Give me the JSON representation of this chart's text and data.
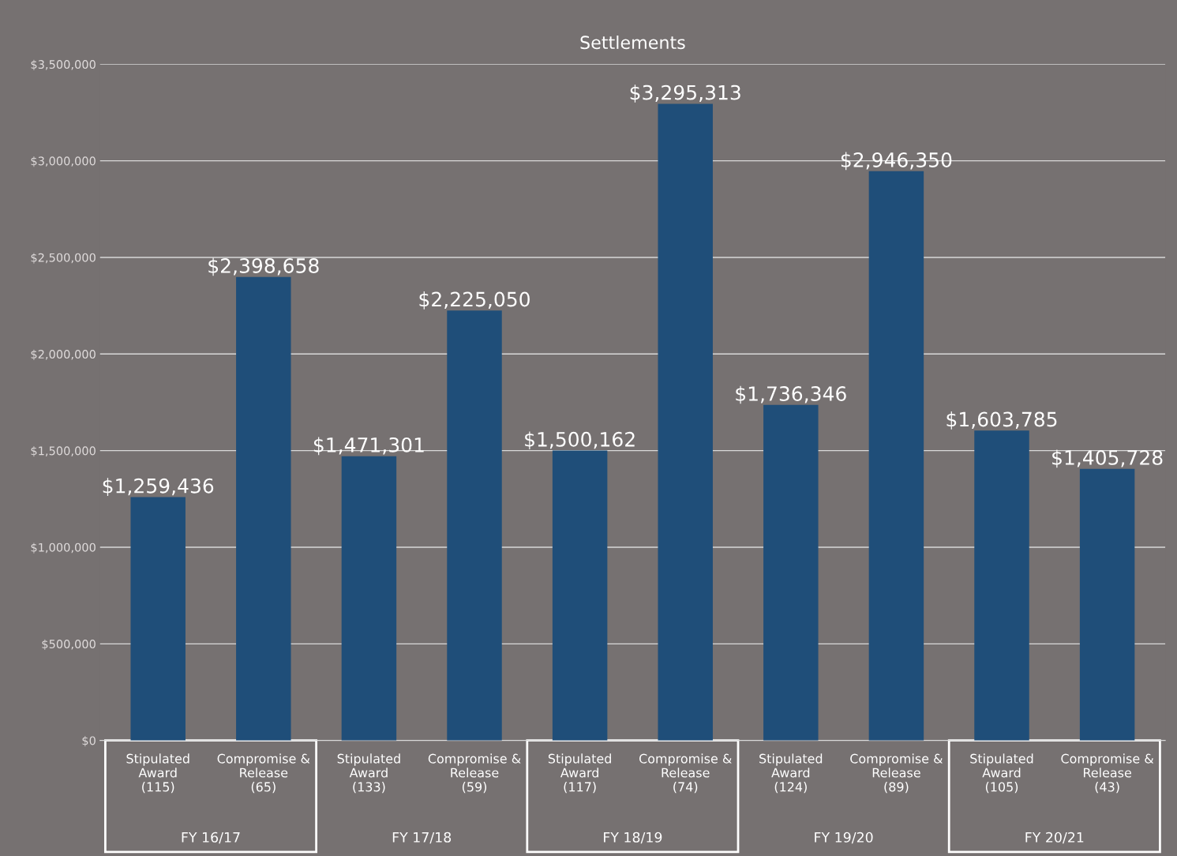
{
  "chart_data": {
    "type": "bar",
    "title": "Settlements",
    "categories": [
      "Stipulated\nAward\n(115)",
      "Compromise &\nRelease\n(65)",
      "Stipulated\nAward\n(133)",
      "Compromise &\nRelease\n(59)",
      "Stipulated\nAward\n(117)",
      "Compromise &\nRelease\n(74)",
      "Stipulated\nAward\n(124)",
      "Compromise &\nRelease\n(89)",
      "Stipulated\nAward\n(105)",
      "Compromise &\nRelease\n(43)"
    ],
    "values": [
      1259436,
      2398658,
      1471301,
      2225050,
      1500162,
      3295313,
      1736346,
      2946350,
      1603785,
      1405728
    ],
    "value_labels": [
      "$1,259,436",
      "$2,398,658",
      "$1,471,301",
      "$2,225,050",
      "$1,500,162",
      "$3,295,313",
      "$1,736,346",
      "$2,946,350",
      "$1,603,785",
      "$1,405,728"
    ],
    "color": "#1f4e79",
    "annotations": [
      "FY 16/17",
      "FY 17/18",
      "FY 18/19",
      "FY 19/20",
      "FY 20/21"
    ],
    "ylim": [
      0,
      3500000
    ],
    "yticks": [
      {
        "value": 0,
        "label": "$0"
      },
      {
        "value": 500000,
        "label": "$500,000"
      },
      {
        "value": 1000000,
        "label": "$1,000,000"
      },
      {
        "value": 1500000,
        "label": "$1,500,000"
      },
      {
        "value": 2000000,
        "label": "$2,000,000"
      },
      {
        "value": 2500000,
        "label": "$2,500,000"
      },
      {
        "value": 3000000,
        "label": "$3,000,000"
      },
      {
        "value": 3500000,
        "label": "$3,500,000"
      }
    ],
    "grid": "y"
  }
}
